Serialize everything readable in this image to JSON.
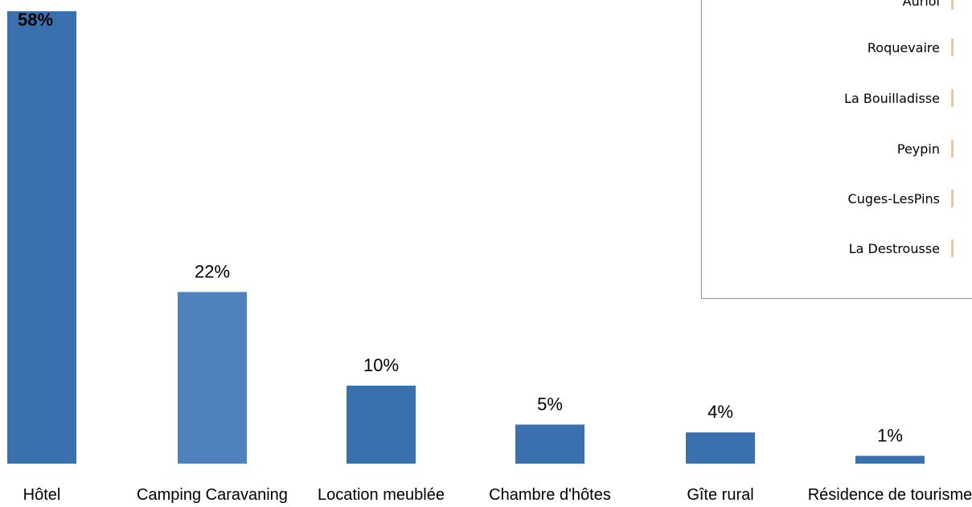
{
  "chart_data": {
    "type": "bar",
    "categories": [
      "Hôtel",
      "Camping Caravaning",
      "Location meublée",
      "Chambre d'hôtes",
      "Gîte rural",
      "Résidence de tourisme"
    ],
    "values": [
      58,
      22,
      10,
      5,
      4,
      1
    ],
    "value_labels": [
      "58%",
      "22%",
      "10%",
      "5%",
      "4%",
      "1%"
    ],
    "unit": "%",
    "colors": [
      "#3a70ad",
      "#4f81bd",
      "#3a70ad",
      "#3a70ad",
      "#3a70ad",
      "#3a70ad"
    ],
    "grid": false
  },
  "legend": {
    "items": [
      "Auriol",
      "Roquevaire",
      "La Bouilladisse",
      "Peypin",
      "Cuges-LesPins",
      "La Destrousse"
    ],
    "swatch_color": "#f6c48f",
    "border_color": "#9b7fd0"
  }
}
